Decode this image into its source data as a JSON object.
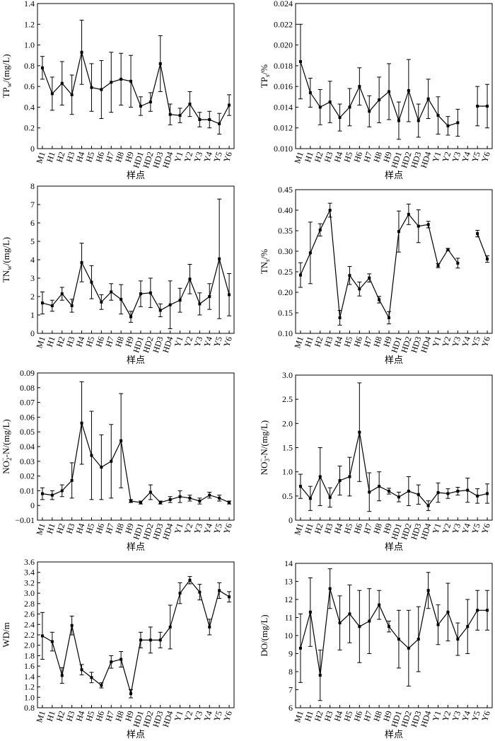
{
  "chart_data": [
    {
      "type": "line",
      "ylabel_main": "TP",
      "ylabel_sub": "w",
      "ylabel_unit": "/(mg/L)",
      "xlabel": "样点",
      "categories": [
        "M1",
        "H1",
        "H2",
        "H3",
        "H4",
        "H5",
        "H6",
        "H7",
        "H8",
        "H9",
        "HD1",
        "HD2",
        "HD3",
        "HD4",
        "Y1",
        "Y2",
        "Y3",
        "Y4",
        "Y5",
        "Y6"
      ],
      "values": [
        0.78,
        0.53,
        0.63,
        0.52,
        0.93,
        0.59,
        0.57,
        0.64,
        0.67,
        0.65,
        0.41,
        0.45,
        0.82,
        0.33,
        0.32,
        0.43,
        0.28,
        0.28,
        0.24,
        0.42
      ],
      "errors": [
        0.11,
        0.16,
        0.21,
        0.19,
        0.31,
        0.23,
        0.28,
        0.29,
        0.25,
        0.25,
        0.09,
        0.09,
        0.27,
        0.1,
        0.07,
        0.12,
        0.07,
        0.08,
        0.1,
        0.1
      ],
      "ylim": [
        0,
        1.4
      ],
      "yticks": [
        "0",
        "0.2",
        "0.4",
        "0.6",
        "0.8",
        "1.0",
        "1.2",
        "1.4"
      ]
    },
    {
      "type": "line",
      "ylabel_main": "TP",
      "ylabel_sub": "s",
      "ylabel_unit": "/%",
      "xlabel": "样点",
      "categories": [
        "M1",
        "H1",
        "H2",
        "H3",
        "H4",
        "H5",
        "H6",
        "H7",
        "H8",
        "H9",
        "HD1",
        "HD2",
        "HD3",
        "HD4",
        "Y1",
        "Y2",
        "Y3",
        "Y4",
        "Y5",
        "Y6"
      ],
      "values": [
        0.0184,
        0.0154,
        0.014,
        0.0145,
        0.013,
        0.014,
        0.016,
        0.0136,
        0.0147,
        0.0155,
        0.0127,
        0.0156,
        0.0127,
        0.0148,
        0.0132,
        0.0122,
        0.0125,
        null,
        0.0141,
        0.0141
      ],
      "errors": [
        0.0036,
        0.0014,
        0.0017,
        0.002,
        0.0013,
        0.0018,
        0.0018,
        0.0015,
        0.0022,
        0.0027,
        0.0018,
        0.003,
        0.0016,
        0.0019,
        0.0018,
        0.0009,
        0.0013,
        null,
        0.0019,
        0.0021
      ],
      "ylim": [
        0.01,
        0.024
      ],
      "yticks": [
        "0.010",
        "0.012",
        "0.014",
        "0.016",
        "0.018",
        "0.020",
        "0.022",
        "0.024"
      ]
    },
    {
      "type": "line",
      "ylabel_main": "TN",
      "ylabel_sub": "w",
      "ylabel_unit": "/(mg/L)",
      "xlabel": "样点",
      "categories": [
        "M1",
        "H1",
        "H2",
        "H3",
        "H4",
        "H5",
        "H6",
        "H7",
        "H8",
        "H9",
        "HD1",
        "HD2",
        "HD3",
        "HD4",
        "Y1",
        "Y2",
        "Y3",
        "Y4",
        "Y5",
        "Y6"
      ],
      "values": [
        1.65,
        1.5,
        2.15,
        1.5,
        3.85,
        2.78,
        1.7,
        2.25,
        1.85,
        0.9,
        2.15,
        2.2,
        1.25,
        1.55,
        1.8,
        2.95,
        1.6,
        2.0,
        4.05,
        2.1
      ],
      "errors": [
        0.6,
        0.3,
        0.35,
        0.35,
        1.05,
        0.9,
        0.4,
        0.45,
        0.8,
        0.3,
        0.7,
        0.8,
        0.35,
        1.3,
        0.65,
        0.8,
        0.6,
        0.7,
        3.25,
        1.15
      ],
      "ylim": [
        0,
        8
      ],
      "yticks": [
        "0",
        "1",
        "2",
        "3",
        "4",
        "5",
        "6",
        "7",
        "8"
      ]
    },
    {
      "type": "line",
      "ylabel_main": "TN",
      "ylabel_sub": "s",
      "ylabel_unit": "/%",
      "xlabel": "样点",
      "categories": [
        "M1",
        "H1",
        "H2",
        "H3",
        "H4",
        "H5",
        "H6",
        "H7",
        "H8",
        "H9",
        "HD1",
        "HD2",
        "HD3",
        "HD4",
        "Y1",
        "Y2",
        "Y3",
        "Y4",
        "Y5",
        "Y6"
      ],
      "values": [
        0.242,
        0.296,
        0.352,
        0.4,
        0.138,
        0.241,
        0.208,
        0.235,
        0.182,
        0.138,
        0.348,
        0.39,
        0.361,
        0.365,
        0.265,
        0.304,
        0.271,
        null,
        0.343,
        0.281
      ],
      "errors": [
        0.03,
        0.075,
        0.015,
        0.017,
        0.018,
        0.022,
        0.017,
        0.01,
        0.008,
        0.015,
        0.05,
        0.025,
        0.04,
        0.008,
        0.005,
        0.003,
        0.012,
        null,
        0.008,
        0.008
      ],
      "ylim": [
        0.1,
        0.45
      ],
      "yticks": [
        "0.10",
        "0.15",
        "0.20",
        "0.25",
        "0.30",
        "0.35",
        "0.40",
        "0.45"
      ]
    },
    {
      "type": "line",
      "ylabel_pre": "NO",
      "ylabel_sub": "2",
      "ylabel_sup": "−",
      "ylabel_unit": "-N/(mg/L)",
      "xlabel": "样点",
      "categories": [
        "M1",
        "H1",
        "H2",
        "H3",
        "H4",
        "H5",
        "H6",
        "H7",
        "H8",
        "H9",
        "HD1",
        "HD2",
        "HD3",
        "HD4",
        "Y1",
        "Y2",
        "Y3",
        "Y4",
        "Y5",
        "Y6"
      ],
      "values": [
        0.008,
        0.007,
        0.01,
        0.017,
        0.056,
        0.034,
        0.026,
        0.03,
        0.044,
        0.003,
        0.002,
        0.009,
        0.002,
        0.004,
        0.006,
        0.005,
        0.003,
        0.007,
        0.005,
        0.002
      ],
      "errors": [
        0.004,
        0.003,
        0.004,
        0.012,
        0.028,
        0.03,
        0.022,
        0.025,
        0.032,
        0.001,
        0.001,
        0.005,
        0.001,
        0.002,
        0.004,
        0.002,
        0.002,
        0.002,
        0.002,
        0.001
      ],
      "ylim": [
        -0.01,
        0.09
      ],
      "yticks": [
        "−0.01",
        "0",
        "0.01",
        "0.02",
        "0.03",
        "0.04",
        "0.05",
        "0.06",
        "0.07",
        "0.08",
        "0.09"
      ]
    },
    {
      "type": "line",
      "ylabel_pre": "NO",
      "ylabel_sub": "3",
      "ylabel_sup": "−",
      "ylabel_unit": "-N/(mg/L)",
      "xlabel": "样点",
      "categories": [
        "M1",
        "H1",
        "H2",
        "H3",
        "H4",
        "H5",
        "H6",
        "H7",
        "H8",
        "H9",
        "HD1",
        "HD2",
        "HD3",
        "HD4",
        "Y1",
        "Y2",
        "Y3",
        "Y4",
        "Y5",
        "Y6"
      ],
      "values": [
        0.7,
        0.45,
        0.9,
        0.47,
        0.82,
        0.9,
        1.82,
        0.58,
        0.7,
        0.6,
        0.48,
        0.6,
        0.53,
        0.3,
        0.57,
        0.55,
        0.6,
        0.62,
        0.5,
        0.55
      ],
      "errors": [
        0.25,
        0.25,
        0.6,
        0.2,
        0.3,
        0.4,
        1.02,
        0.4,
        0.3,
        0.06,
        0.1,
        0.3,
        0.2,
        0.1,
        0.2,
        0.1,
        0.08,
        0.25,
        0.15,
        0.2
      ],
      "ylim": [
        0,
        3.0
      ],
      "yticks": [
        "0",
        "0.5",
        "1.0",
        "1.5",
        "2.0",
        "2.5",
        "3.0"
      ]
    },
    {
      "type": "line",
      "ylabel_main": "WD/m",
      "ylabel_sub": "",
      "ylabel_unit": "",
      "xlabel": "样点",
      "categories": [
        "M1",
        "H1",
        "H2",
        "H3",
        "H4",
        "H5",
        "H6",
        "H7",
        "H8",
        "H9",
        "HD1",
        "HD2",
        "HD3",
        "HD4",
        "Y1",
        "Y2",
        "Y3",
        "Y4",
        "Y5",
        "Y6"
      ],
      "values": [
        2.18,
        2.07,
        1.42,
        2.38,
        1.53,
        1.38,
        1.23,
        1.68,
        1.73,
        1.07,
        2.1,
        2.1,
        2.1,
        2.35,
        3.0,
        3.25,
        3.02,
        2.35,
        3.05,
        2.93
      ],
      "errors": [
        0.45,
        0.18,
        0.15,
        0.18,
        0.1,
        0.1,
        0.05,
        0.12,
        0.15,
        0.08,
        0.15,
        0.25,
        0.15,
        0.42,
        0.2,
        0.07,
        0.15,
        0.15,
        0.15,
        0.1
      ],
      "ylim": [
        0.8,
        3.6
      ],
      "yticks": [
        "0.8",
        "1.0",
        "1.2",
        "1.4",
        "1.6",
        "1.8",
        "2.0",
        "2.2",
        "2.4",
        "2.6",
        "2.8",
        "3.0",
        "3.2",
        "3.4",
        "3.6"
      ]
    },
    {
      "type": "line",
      "ylabel_main": "DO/(mg/L)",
      "ylabel_sub": "",
      "ylabel_unit": "",
      "xlabel": "样点",
      "categories": [
        "M1",
        "H1",
        "H2",
        "H3",
        "H4",
        "H5",
        "H6",
        "H7",
        "H8",
        "H9",
        "HD1",
        "HD2",
        "HD3",
        "HD4",
        "Y1",
        "Y2",
        "Y3",
        "Y4",
        "Y5",
        "Y6"
      ],
      "values": [
        9.3,
        11.3,
        7.8,
        12.6,
        10.7,
        11.2,
        10.5,
        10.8,
        11.7,
        10.5,
        9.8,
        9.3,
        9.8,
        12.5,
        10.6,
        11.3,
        9.8,
        10.5,
        11.4,
        11.4
      ],
      "errors": [
        1.9,
        1.9,
        1.4,
        1.1,
        1.5,
        1.6,
        2.0,
        1.8,
        0.8,
        0.3,
        1.6,
        2.1,
        1.8,
        1.0,
        1.1,
        1.6,
        0.9,
        1.5,
        1.1,
        1.1
      ],
      "ylim": [
        6,
        14
      ],
      "yticks": [
        "6",
        "7",
        "8",
        "9",
        "10",
        "11",
        "12",
        "13",
        "14"
      ]
    }
  ]
}
